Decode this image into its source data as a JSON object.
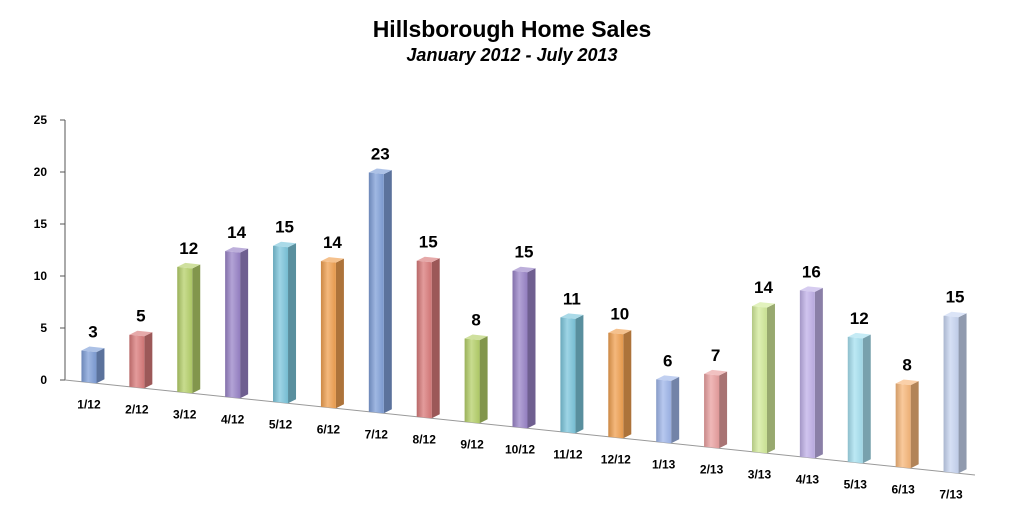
{
  "chart_data": {
    "type": "bar",
    "title": "Hillsborough Home Sales",
    "subtitle": "January 2012 - July 2013",
    "xlabel": "",
    "ylabel": "",
    "ylim": [
      0,
      25
    ],
    "yticks": [
      0,
      5,
      10,
      15,
      20,
      25
    ],
    "grid": false,
    "legend": "none",
    "categories": [
      "1/12",
      "2/12",
      "3/12",
      "4/12",
      "5/12",
      "6/12",
      "7/12",
      "8/12",
      "9/12",
      "10/12",
      "11/12",
      "12/12",
      "1/13",
      "2/13",
      "3/13",
      "4/13",
      "5/13",
      "6/13",
      "7/13"
    ],
    "values": [
      3,
      5,
      12,
      14,
      15,
      14,
      23,
      15,
      8,
      15,
      11,
      10,
      6,
      7,
      14,
      16,
      12,
      8,
      15
    ],
    "colors": [
      "#7f9fd8",
      "#d97a7a",
      "#b5d06a",
      "#9a84c8",
      "#7cc6dc",
      "#f0a050",
      "#7f9fd8",
      "#d97a7a",
      "#b5d06a",
      "#9a84c8",
      "#7cc6dc",
      "#f0a050",
      "#9fb6ea",
      "#eaa0a0",
      "#d3eb9a",
      "#c0b0e8",
      "#a6e0f0",
      "#f7b77a",
      "#c8d6f2"
    ]
  }
}
